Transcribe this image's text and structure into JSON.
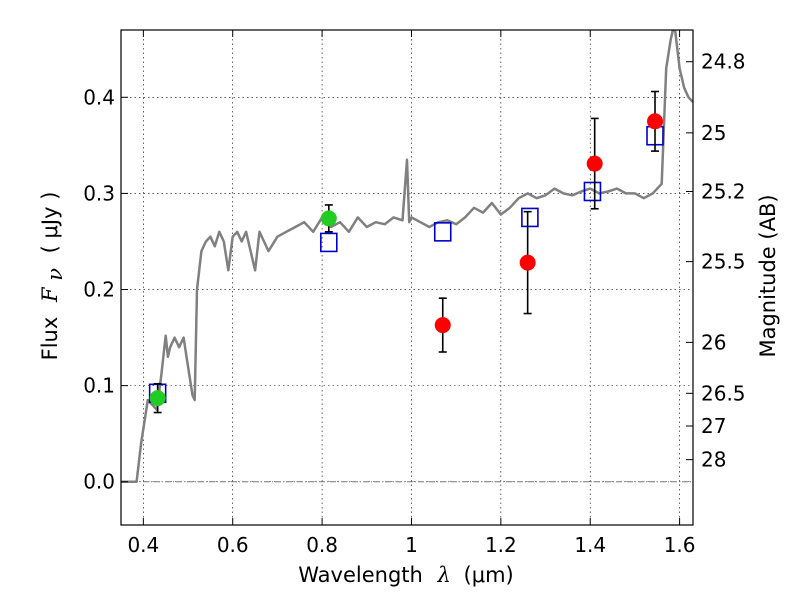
{
  "chart_data": {
    "type": "scatter",
    "xlabel": {
      "text": "Wavelength",
      "symbol": "λ",
      "unit": "(μm)"
    },
    "ylabel": {
      "text": "Flux",
      "symbol": "F",
      "subscript": "ν",
      "unit": "( μJy )"
    },
    "y2label": "Magnitude (AB)",
    "xlim": [
      0.35,
      1.63
    ],
    "ylim": [
      -0.045,
      0.47
    ],
    "grid": true,
    "x_ticks": [
      0.4,
      0.6,
      0.8,
      1.0,
      1.2,
      1.4,
      1.6
    ],
    "x_tick_labels": [
      "0.4",
      "0.6",
      "0.8",
      "1",
      "1.2",
      "1.4",
      "1.6"
    ],
    "y_ticks": [
      0.0,
      0.1,
      0.2,
      0.3,
      0.4
    ],
    "y_tick_labels": [
      "0.0",
      "0.1",
      "0.2",
      "0.3",
      "0.4"
    ],
    "right_ticks": [
      {
        "label": "24.8",
        "flux": 0.437
      },
      {
        "label": "25",
        "flux": 0.363
      },
      {
        "label": "25.2",
        "flux": 0.302
      },
      {
        "label": "25.5",
        "flux": 0.229
      },
      {
        "label": "26",
        "flux": 0.145
      },
      {
        "label": "26.5",
        "flux": 0.092
      },
      {
        "label": "27",
        "flux": 0.058
      },
      {
        "label": "28",
        "flux": 0.023
      }
    ],
    "colors": {
      "model": "#808080",
      "synthetic": "#0000cc",
      "red": "#ff0000",
      "green": "#22cc22",
      "zero_line": "#777777"
    },
    "series": [
      {
        "marker": "line",
        "color": "#808080",
        "x": [
          0.35,
          0.385,
          0.395,
          0.41,
          0.43,
          0.44,
          0.45,
          0.455,
          0.46,
          0.47,
          0.48,
          0.49,
          0.5,
          0.51,
          0.515,
          0.52,
          0.53,
          0.54,
          0.55,
          0.56,
          0.57,
          0.58,
          0.59,
          0.6,
          0.61,
          0.62,
          0.63,
          0.64,
          0.65,
          0.66,
          0.67,
          0.68,
          0.7,
          0.72,
          0.74,
          0.76,
          0.78,
          0.8,
          0.82,
          0.84,
          0.86,
          0.88,
          0.9,
          0.92,
          0.94,
          0.96,
          0.98,
          0.99,
          0.995,
          1.0,
          1.02,
          1.04,
          1.06,
          1.08,
          1.1,
          1.12,
          1.14,
          1.16,
          1.18,
          1.2,
          1.22,
          1.24,
          1.26,
          1.28,
          1.3,
          1.32,
          1.34,
          1.36,
          1.38,
          1.4,
          1.42,
          1.44,
          1.46,
          1.48,
          1.5,
          1.52,
          1.54,
          1.56,
          1.57,
          1.58,
          1.585,
          1.59,
          1.6,
          1.61,
          1.62,
          1.63
        ],
        "y": [
          0.0,
          0.0,
          0.04,
          0.085,
          0.075,
          0.11,
          0.152,
          0.13,
          0.14,
          0.15,
          0.14,
          0.15,
          0.12,
          0.09,
          0.085,
          0.2,
          0.24,
          0.25,
          0.255,
          0.245,
          0.26,
          0.25,
          0.22,
          0.255,
          0.26,
          0.25,
          0.26,
          0.24,
          0.22,
          0.26,
          0.25,
          0.24,
          0.255,
          0.26,
          0.265,
          0.27,
          0.26,
          0.275,
          0.265,
          0.27,
          0.26,
          0.275,
          0.265,
          0.27,
          0.268,
          0.275,
          0.272,
          0.335,
          0.27,
          0.275,
          0.27,
          0.265,
          0.27,
          0.272,
          0.268,
          0.275,
          0.285,
          0.28,
          0.29,
          0.278,
          0.285,
          0.295,
          0.3,
          0.295,
          0.298,
          0.305,
          0.3,
          0.298,
          0.302,
          0.305,
          0.3,
          0.302,
          0.305,
          0.3,
          0.3,
          0.295,
          0.3,
          0.31,
          0.43,
          0.46,
          0.47,
          0.47,
          0.43,
          0.41,
          0.4,
          0.395
        ]
      },
      {
        "marker": "open-square",
        "color": "#0000cc",
        "points": [
          {
            "x": 0.432,
            "y": 0.092
          },
          {
            "x": 0.815,
            "y": 0.249
          },
          {
            "x": 1.07,
            "y": 0.26
          },
          {
            "x": 1.265,
            "y": 0.275
          },
          {
            "x": 1.405,
            "y": 0.302
          },
          {
            "x": 1.545,
            "y": 0.36
          }
        ]
      },
      {
        "marker": "filled-circle",
        "color": "#ff0000",
        "points": [
          {
            "x": 1.07,
            "y": 0.163,
            "err": 0.028
          },
          {
            "x": 1.26,
            "y": 0.228,
            "err": 0.053
          },
          {
            "x": 1.41,
            "y": 0.331,
            "err": 0.047
          },
          {
            "x": 1.545,
            "y": 0.375,
            "err": 0.031
          }
        ]
      },
      {
        "marker": "filled-circle",
        "color": "#22cc22",
        "points": [
          {
            "x": 0.432,
            "y": 0.087,
            "err": 0.015
          },
          {
            "x": 0.815,
            "y": 0.274,
            "err": 0.014
          }
        ]
      }
    ]
  }
}
